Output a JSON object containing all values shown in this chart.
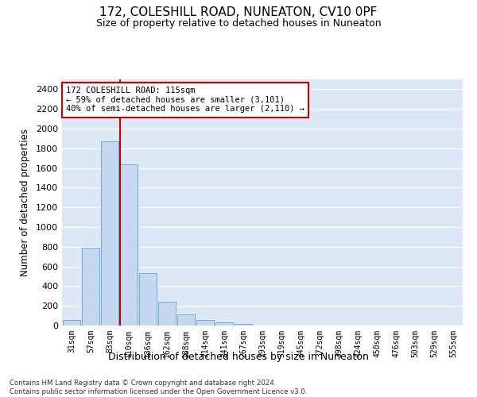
{
  "title": "172, COLESHILL ROAD, NUNEATON, CV10 0PF",
  "subtitle": "Size of property relative to detached houses in Nuneaton",
  "xlabel": "Distribution of detached houses by size in Nuneaton",
  "ylabel": "Number of detached properties",
  "bar_color": "#c5d8f0",
  "bar_edge_color": "#6aaed6",
  "categories": [
    "31sqm",
    "57sqm",
    "83sqm",
    "110sqm",
    "136sqm",
    "162sqm",
    "188sqm",
    "214sqm",
    "241sqm",
    "267sqm",
    "293sqm",
    "319sqm",
    "345sqm",
    "372sqm",
    "398sqm",
    "424sqm",
    "450sqm",
    "476sqm",
    "503sqm",
    "529sqm",
    "555sqm"
  ],
  "values": [
    55,
    790,
    1870,
    1640,
    530,
    240,
    110,
    60,
    35,
    20,
    0,
    0,
    0,
    0,
    0,
    0,
    0,
    0,
    0,
    0,
    0
  ],
  "ylim": [
    0,
    2500
  ],
  "yticks": [
    0,
    200,
    400,
    600,
    800,
    1000,
    1200,
    1400,
    1600,
    1800,
    2000,
    2200,
    2400
  ],
  "property_bar_index": 3,
  "annotation_line": "172 COLESHILL ROAD: 115sqm",
  "annotation_line2": "← 59% of detached houses are smaller (3,101)",
  "annotation_line3": "40% of semi-detached houses are larger (2,110) →",
  "vline_color": "#cc0000",
  "annotation_box_color": "#cc0000",
  "background_color": "#dce8f5",
  "footer_line1": "Contains HM Land Registry data © Crown copyright and database right 2024.",
  "footer_line2": "Contains public sector information licensed under the Open Government Licence v3.0."
}
